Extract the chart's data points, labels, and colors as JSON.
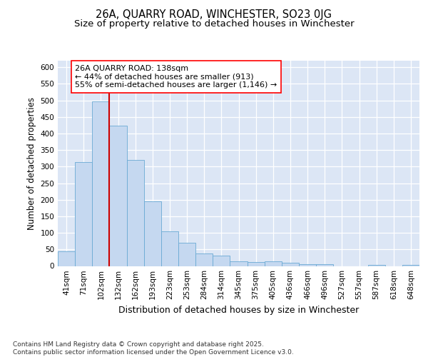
{
  "title1": "26A, QUARRY ROAD, WINCHESTER, SO23 0JG",
  "title2": "Size of property relative to detached houses in Winchester",
  "xlabel": "Distribution of detached houses by size in Winchester",
  "ylabel": "Number of detached properties",
  "categories": [
    "41sqm",
    "71sqm",
    "102sqm",
    "132sqm",
    "162sqm",
    "193sqm",
    "223sqm",
    "253sqm",
    "284sqm",
    "314sqm",
    "345sqm",
    "375sqm",
    "405sqm",
    "436sqm",
    "466sqm",
    "496sqm",
    "527sqm",
    "557sqm",
    "587sqm",
    "618sqm",
    "648sqm"
  ],
  "values": [
    45,
    313,
    498,
    423,
    320,
    195,
    105,
    70,
    37,
    32,
    13,
    12,
    15,
    10,
    6,
    5,
    0,
    0,
    4,
    0,
    4
  ],
  "bar_color": "#c5d8f0",
  "bar_edge_color": "#6aaad4",
  "vline_color": "#cc0000",
  "vline_position": 2.5,
  "annotation_text": "26A QUARRY ROAD: 138sqm\n← 44% of detached houses are smaller (913)\n55% of semi-detached houses are larger (1,146) →",
  "ylim_max": 620,
  "yticks": [
    0,
    50,
    100,
    150,
    200,
    250,
    300,
    350,
    400,
    450,
    500,
    550,
    600
  ],
  "background_color": "#dce6f5",
  "grid_color": "#ffffff",
  "footer_text": "Contains HM Land Registry data © Crown copyright and database right 2025.\nContains public sector information licensed under the Open Government Licence v3.0.",
  "title1_fontsize": 10.5,
  "title2_fontsize": 9.5,
  "xlabel_fontsize": 9,
  "ylabel_fontsize": 8.5,
  "annotation_fontsize": 8,
  "footer_fontsize": 6.5,
  "tick_fontsize": 7.5
}
